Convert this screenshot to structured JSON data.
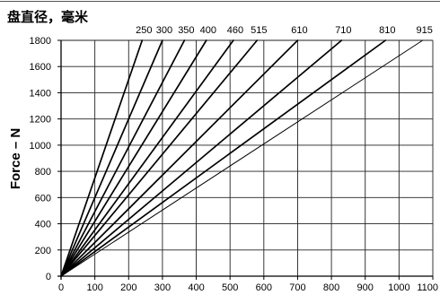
{
  "chart_data": {
    "type": "line",
    "title": "盘直径，毫米",
    "ylabel": "Force – N",
    "xlim": [
      0,
      1100
    ],
    "ylim": [
      0,
      1800
    ],
    "x_ticks": [
      0,
      100,
      200,
      300,
      400,
      500,
      600,
      700,
      800,
      900,
      1000,
      1100
    ],
    "y_ticks": [
      0,
      200,
      400,
      600,
      800,
      1000,
      1200,
      1400,
      1600,
      1800
    ],
    "grid": true,
    "legend_position": "top",
    "series": [
      {
        "name": "250",
        "x": [
          0,
          240
        ],
        "y": [
          0,
          1800
        ]
      },
      {
        "name": "300",
        "x": [
          0,
          300
        ],
        "y": [
          0,
          1800
        ]
      },
      {
        "name": "350",
        "x": [
          0,
          365
        ],
        "y": [
          0,
          1800
        ]
      },
      {
        "name": "400",
        "x": [
          0,
          430
        ],
        "y": [
          0,
          1800
        ]
      },
      {
        "name": "460",
        "x": [
          0,
          510
        ],
        "y": [
          0,
          1800
        ]
      },
      {
        "name": "515",
        "x": [
          0,
          580
        ],
        "y": [
          0,
          1800
        ]
      },
      {
        "name": "610",
        "x": [
          0,
          700
        ],
        "y": [
          0,
          1800
        ]
      },
      {
        "name": "710",
        "x": [
          0,
          830
        ],
        "y": [
          0,
          1800
        ]
      },
      {
        "name": "810",
        "x": [
          0,
          960
        ],
        "y": [
          0,
          1800
        ]
      },
      {
        "name": "915",
        "x": [
          0,
          1070
        ],
        "y": [
          0,
          1800
        ]
      }
    ]
  }
}
